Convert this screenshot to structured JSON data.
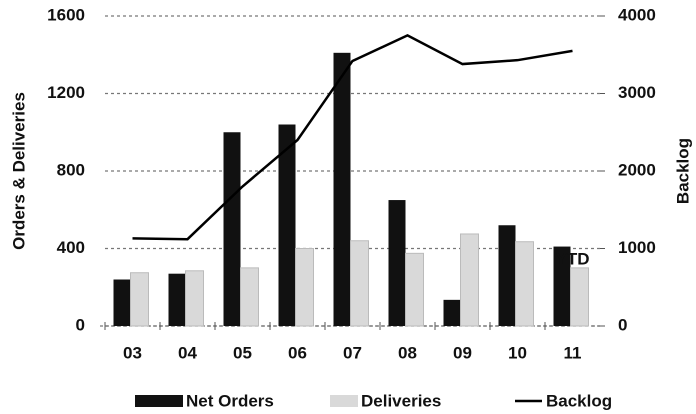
{
  "chart_data": {
    "type": "bar",
    "categories": [
      "03",
      "04",
      "05",
      "06",
      "07",
      "08",
      "09",
      "10",
      "11"
    ],
    "series": [
      {
        "name": "Net Orders",
        "color": "#111111",
        "values": [
          240,
          270,
          1000,
          1040,
          1410,
          650,
          135,
          520,
          410
        ]
      },
      {
        "name": "Deliveries",
        "color": "#d9d9d9",
        "values": [
          275,
          285,
          300,
          400,
          440,
          375,
          475,
          435,
          300
        ]
      },
      {
        "name": "Backlog",
        "color": "#000000",
        "type": "line",
        "axis": "y2",
        "values": [
          1130,
          1120,
          1800,
          2400,
          3420,
          3750,
          3380,
          3430,
          3550
        ]
      }
    ],
    "y_label": "Orders & Deliveries",
    "y2_label": "Backlog",
    "annotation": "YTD",
    "ylim": [
      0,
      1600
    ],
    "yticks": [
      0,
      400,
      800,
      1200,
      1600
    ],
    "y2lim": [
      0,
      4000
    ],
    "y2ticks": [
      0,
      1000,
      2000,
      3000,
      4000
    ],
    "grid": true,
    "legend": "bottom"
  }
}
